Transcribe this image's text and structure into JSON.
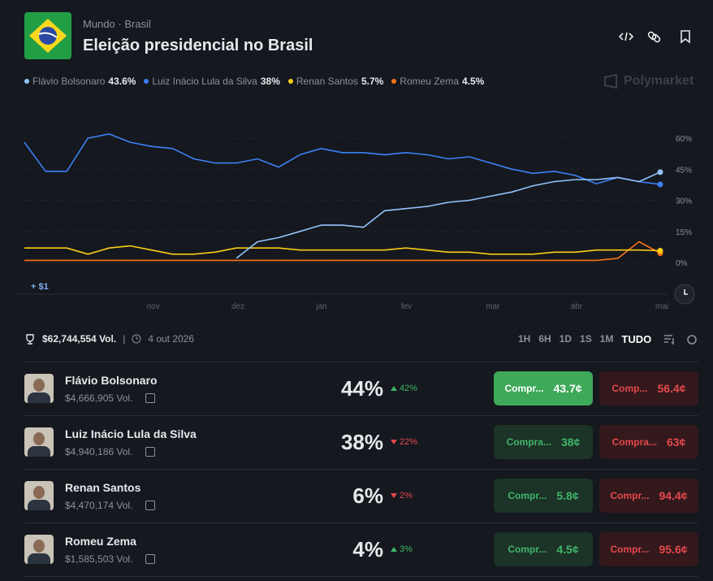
{
  "header": {
    "breadcrumb": [
      "Mundo",
      "Brasil"
    ],
    "title": "Eleição presidencial no Brasil",
    "brand": "Polymarket"
  },
  "chart_data": {
    "type": "line",
    "categories": [
      null,
      null,
      null,
      null,
      null,
      null,
      "nov",
      null,
      null,
      null,
      "dez",
      null,
      null,
      null,
      "jan",
      null,
      null,
      null,
      "fev",
      null,
      null,
      null,
      "mar",
      null,
      null,
      null,
      "abr",
      null,
      null,
      null,
      "mai"
    ],
    "series": [
      {
        "name": "Flávio Bolsonaro",
        "current": "43.6%",
        "color": "#93c5fd",
        "values": [
          null,
          null,
          null,
          null,
          null,
          null,
          null,
          null,
          null,
          null,
          2,
          10,
          12,
          15,
          18,
          18,
          17,
          25,
          26,
          27,
          29,
          30,
          32,
          34,
          37,
          39,
          40,
          40,
          41,
          39,
          43.6
        ]
      },
      {
        "name": "Luiz Inácio Lula da Silva",
        "current": "38%",
        "color": "#3b82f6",
        "values": [
          58,
          44,
          44,
          60,
          62,
          58,
          56,
          55,
          50,
          48,
          48,
          50,
          46,
          52,
          55,
          53,
          53,
          52,
          53,
          52,
          50,
          51,
          48,
          45,
          43,
          44,
          42,
          38,
          41,
          39,
          37.7
        ]
      },
      {
        "name": "Renan Santos",
        "current": "5.7%",
        "color": "#facc15",
        "values": [
          7,
          7,
          7,
          4,
          7,
          8,
          6,
          4,
          4,
          5,
          7,
          7,
          7,
          6,
          6,
          6,
          6,
          6,
          7,
          6,
          5,
          5,
          4,
          4,
          4,
          5,
          5,
          6,
          6,
          6,
          5.7
        ]
      },
      {
        "name": "Romeu Zema",
        "current": "4.5%",
        "color": "#f97316",
        "values": [
          1,
          1,
          1,
          1,
          1,
          1,
          1,
          1,
          1,
          1,
          1,
          1,
          1,
          1,
          1,
          1,
          1,
          1,
          1,
          1,
          1,
          1,
          1,
          1,
          1,
          1,
          1,
          1,
          2,
          10,
          4.5
        ]
      }
    ],
    "ylim": [
      0,
      70
    ],
    "yticks": [
      {
        "value": 0,
        "label": "0%"
      },
      {
        "value": 15,
        "label": "15%"
      },
      {
        "value": 30,
        "label": "30%"
      },
      {
        "value": 45,
        "label": "45%"
      },
      {
        "value": 60,
        "label": "60%"
      }
    ],
    "grid": true,
    "annotation": "+ $1"
  },
  "stats": {
    "volume": "$62,744,554 Vol.",
    "date": "4 out 2026"
  },
  "ranges": [
    "1H",
    "6H",
    "1D",
    "1S",
    "1M",
    "TUDO"
  ],
  "selected_range": 5,
  "outcomes": [
    {
      "name": "Flávio Bolsonaro",
      "volume": "$4,666,905 Vol.",
      "chance": "44%",
      "change": "42%",
      "direction": "up",
      "buy_label": "Compr...",
      "buy_price": "43.7¢",
      "sell_label": "Comp...",
      "sell_price": "56.4¢"
    },
    {
      "name": "Luiz Inácio Lula da Silva",
      "volume": "$4,940,186 Vol.",
      "chance": "38%",
      "change": "22%",
      "direction": "down",
      "buy_label": "Compra...",
      "buy_price": "38¢",
      "sell_label": "Compra...",
      "sell_price": "63¢"
    },
    {
      "name": "Renan Santos",
      "volume": "$4,470,174 Vol.",
      "chance": "6%",
      "change": "2%",
      "direction": "down",
      "buy_label": "Compr...",
      "buy_price": "5.8¢",
      "sell_label": "Compr...",
      "sell_price": "94.4¢"
    },
    {
      "name": "Romeu Zema",
      "volume": "$1,585,503 Vol.",
      "chance": "4%",
      "change": "3%",
      "direction": "up",
      "buy_label": "Compr...",
      "buy_price": "4.5¢",
      "sell_label": "Compr...",
      "sell_price": "95.6¢"
    }
  ]
}
